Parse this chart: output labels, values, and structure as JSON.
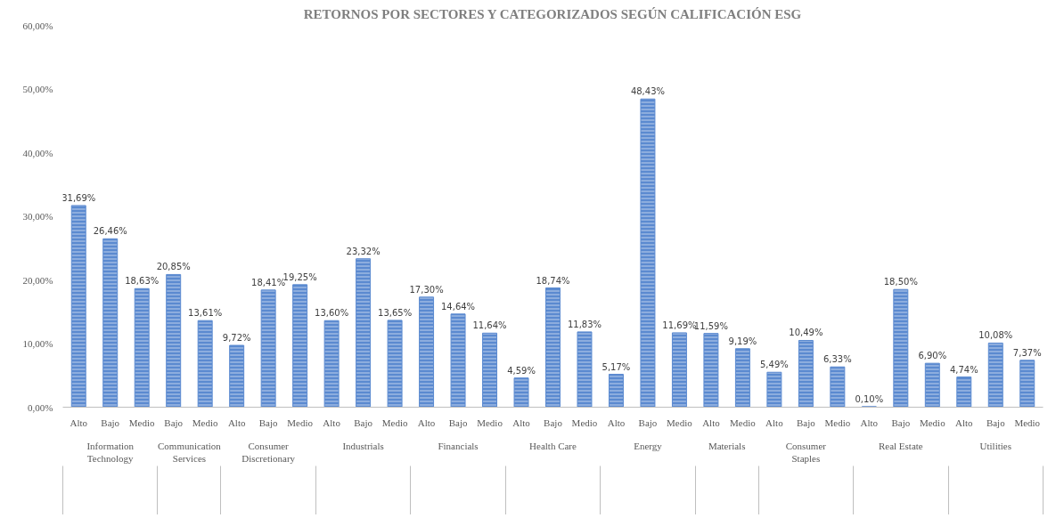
{
  "chart_data": {
    "type": "bar",
    "title": "RETORNOS POR SECTORES Y CATEGORIZADOS SEGÚN CALIFICACIÓN ESG",
    "categories": [
      "Alto",
      "Bajo",
      "Medio",
      "Bajo",
      "Medio",
      "Alto",
      "Bajo",
      "Medio",
      "Alto",
      "Bajo",
      "Medio",
      "Alto",
      "Bajo",
      "Medio",
      "Alto",
      "Bajo",
      "Medio",
      "Alto",
      "Bajo",
      "Medio",
      "Alto",
      "Medio",
      "Alto",
      "Bajo",
      "Medio",
      "Alto",
      "Bajo",
      "Medio",
      "Alto",
      "Bajo",
      "Medio"
    ],
    "annotations": [
      "Information Technology",
      "Communication Services",
      "Consumer Discretionary",
      "Industrials",
      "Financials",
      "Health Care",
      "Energy",
      "Materials",
      "Consumer Staples",
      "Real Estate",
      "Utilities"
    ],
    "values": [
      31.69,
      26.46,
      18.63,
      20.85,
      13.61,
      9.72,
      18.41,
      19.25,
      13.6,
      23.32,
      13.65,
      17.3,
      14.64,
      11.64,
      4.59,
      18.74,
      11.83,
      5.17,
      48.43,
      11.69,
      11.59,
      9.19,
      5.49,
      10.49,
      6.33,
      0.1,
      18.5,
      6.9,
      4.74,
      10.08,
      7.37
    ],
    "value_labels": [
      "31,69%",
      "26,46%",
      "18,63%",
      "20,85%",
      "13,61%",
      "9,72%",
      "18,41%",
      "19,25%",
      "13,60%",
      "23,32%",
      "13,65%",
      "17,30%",
      "14,64%",
      "11,64%",
      "4,59%",
      "18,74%",
      "11,83%",
      "5,17%",
      "48,43%",
      "11,69%",
      "11,59%",
      "9,19%",
      "5,49%",
      "10,49%",
      "6,33%",
      "0,10%",
      "18,50%",
      "6,90%",
      "4,74%",
      "10,08%",
      "7,37%"
    ],
    "color": "#5b8ad0",
    "ylim": [
      0,
      60
    ],
    "yticks": [
      {
        "value": 0,
        "label": "0,00%"
      },
      {
        "value": 10,
        "label": "10,00%"
      },
      {
        "value": 20,
        "label": "20,00%"
      },
      {
        "value": 30,
        "label": "30,00%"
      },
      {
        "value": 40,
        "label": "40,00%"
      },
      {
        "value": 50,
        "label": "50,00%"
      },
      {
        "value": 60,
        "label": "60,00%"
      }
    ]
  }
}
